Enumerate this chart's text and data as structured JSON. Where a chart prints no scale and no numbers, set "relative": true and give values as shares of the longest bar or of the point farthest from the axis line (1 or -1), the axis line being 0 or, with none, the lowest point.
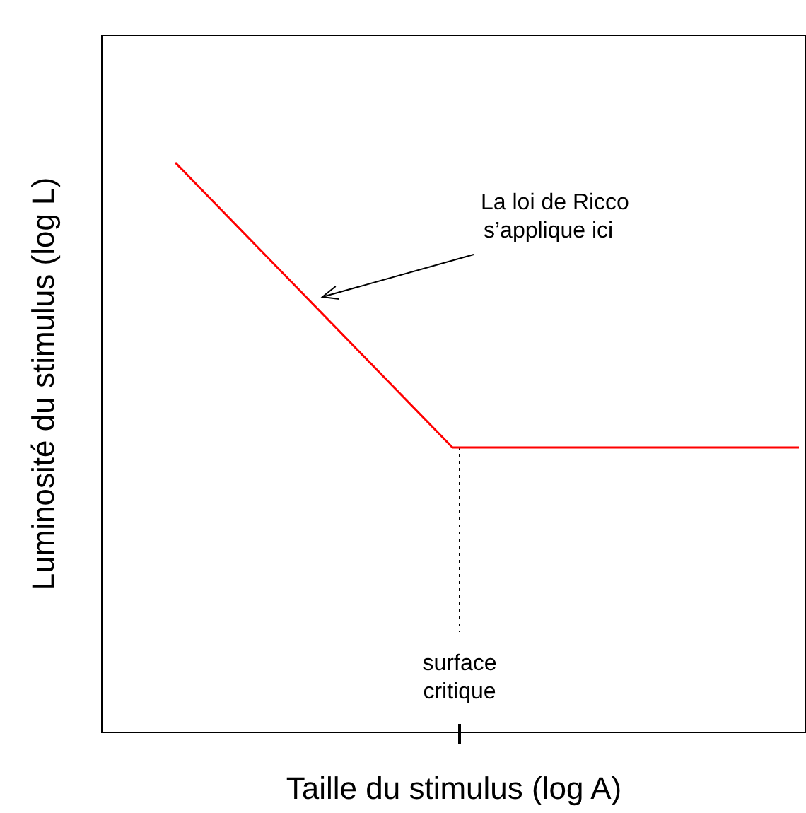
{
  "chart_data": {
    "type": "line",
    "relative": true,
    "xlabel": "Taille du stimulus (log A)",
    "ylabel": "Luminosité du stimulus (log L)",
    "categories": [
      null,
      null,
      null,
      null,
      null,
      null,
      null,
      null,
      null,
      null
    ],
    "series": [
      {
        "color": "#ff0000",
        "values": [
          1,
          0.875,
          0.75,
          0.625,
          0.5,
          0.5,
          0.5,
          0.5,
          0.5,
          0.5
        ]
      }
    ],
    "annotations": [
      "La loi de Ricco\ns’applique ici",
      "surface\ncritique"
    ],
    "line_style": "solid"
  }
}
